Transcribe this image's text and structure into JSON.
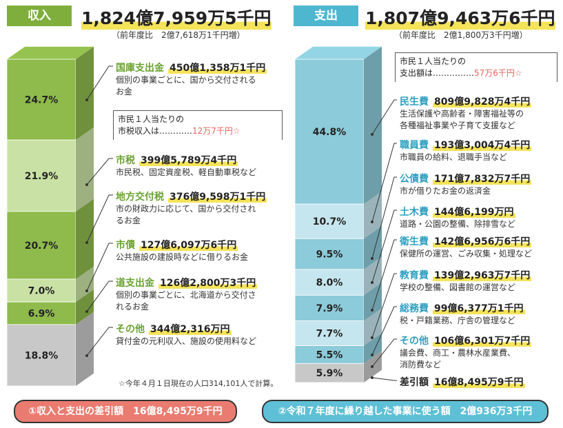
{
  "income": {
    "tag": "収入",
    "total": "1,824億7,959万5千円",
    "compare": "（前年度比　2億7,618万1千円増）",
    "bar_segments": [
      {
        "pct": "24.7%",
        "value": 24.7,
        "color": "#8fba4c"
      },
      {
        "pct": "21.9%",
        "value": 21.9,
        "color": "#c9e1a4"
      },
      {
        "pct": "20.7%",
        "value": 20.7,
        "color": "#8fba4c"
      },
      {
        "pct": "7.0%",
        "value": 7.0,
        "color": "#c9e1a4"
      },
      {
        "pct": "6.9%",
        "value": 6.9,
        "color": "#8fba4c"
      },
      {
        "pct": "18.8%",
        "value": 18.8,
        "color": "#c8c8c8"
      }
    ],
    "items": [
      {
        "name": "国庫支出金",
        "amount": "450億1,358万1千円",
        "desc": "個別の事業ごとに、国から交付される\nお金"
      },
      {
        "name": "市税",
        "amount": "399億5,789万4千円",
        "desc": "市民税、固定資産税、軽自動車税など"
      },
      {
        "name": "地方交付税",
        "amount": "376億9,598万1千円",
        "desc": "市の財政力に応じて、国から交付され\nるお金"
      },
      {
        "name": "市債",
        "amount": "127億6,097万6千円",
        "desc": "公共施設の建設時などに借りるお金"
      },
      {
        "name": "道支出金",
        "amount": "126億2,800万3千円",
        "desc": "個別の事業ごとに、北海道から交付さ\nれるお金"
      },
      {
        "name": "その他",
        "amount": "344億2,316万円",
        "desc": "貸付金の元利収入、施設の使用料など"
      }
    ],
    "callout": {
      "line1": "市民１人当たりの",
      "line2": "市税収入は…………",
      "value": "12万7千円☆"
    }
  },
  "expense": {
    "tag": "支出",
    "total": "1,807億9,463万6千円",
    "compare": "（前年度比　2億1,800万3千円増）",
    "bar_segments": [
      {
        "pct": "44.8%",
        "value": 44.8,
        "color": "#8ccbd9"
      },
      {
        "pct": "10.7%",
        "value": 10.7,
        "color": "#c5e6ee"
      },
      {
        "pct": "9.5%",
        "value": 9.5,
        "color": "#8ccbd9"
      },
      {
        "pct": "8.0%",
        "value": 8.0,
        "color": "#c5e6ee"
      },
      {
        "pct": "7.9%",
        "value": 7.9,
        "color": "#8ccbd9"
      },
      {
        "pct": "7.7%",
        "value": 7.7,
        "color": "#c5e6ee"
      },
      {
        "pct": "5.5%",
        "value": 5.5,
        "color": "#8ccbd9"
      },
      {
        "pct": "5.9%",
        "value": 5.9,
        "color": "#c8c8c8"
      }
    ],
    "items": [
      {
        "name": "民生費",
        "amount": "809億9,828万4千円",
        "desc": "生活保護や高齢者・障害福祉等の\n各種福祉事業や子育て支援など"
      },
      {
        "name": "職員費",
        "amount": "193億3,004万4千円",
        "desc": "市職員の給料、退職手当など"
      },
      {
        "name": "公債費",
        "amount": "171億7,832万7千円",
        "desc": "市が借りたお金の返済金"
      },
      {
        "name": "土木費",
        "amount": "144億6,199万円",
        "desc": "道路・公園の整備、除排雪など"
      },
      {
        "name": "衛生費",
        "amount": "142億6,956万6千円",
        "desc": "保健所の運営、ごみ収集・処理など"
      },
      {
        "name": "教育費",
        "amount": "139億2,963万7千円",
        "desc": "学校の整備、図書館の運営など"
      },
      {
        "name": "総務費",
        "amount": "99億6,377万1千円",
        "desc": "税・戸籍業務、庁舎の管理など"
      },
      {
        "name": "その他",
        "amount": "106億6,301万7千円",
        "desc": "議会費、商工・農林水産業費、\n消防費など"
      },
      {
        "name": "差引額",
        "amount": "16億8,495万9千円",
        "desc": ""
      }
    ],
    "callout": {
      "line1": "市民１人当たりの",
      "line2": "支出額は……………",
      "value": "57万6千円☆"
    }
  },
  "footnote": "☆今年４月１日現在の人口314,101人で計算。",
  "bottom": {
    "left": "①収入と支出の差引額　16億8,495万9千円",
    "right": "②令和７年度に繰り越した事業に使う額　2億936万3千円"
  },
  "colors": {
    "income_tag": "#7fae3c",
    "expense_tag": "#4fb6cf",
    "income_head": "#6aa232",
    "expense_head": "#2f9fc0",
    "pill_left": "#ea7b70",
    "pill_right": "#5ec0d6"
  }
}
